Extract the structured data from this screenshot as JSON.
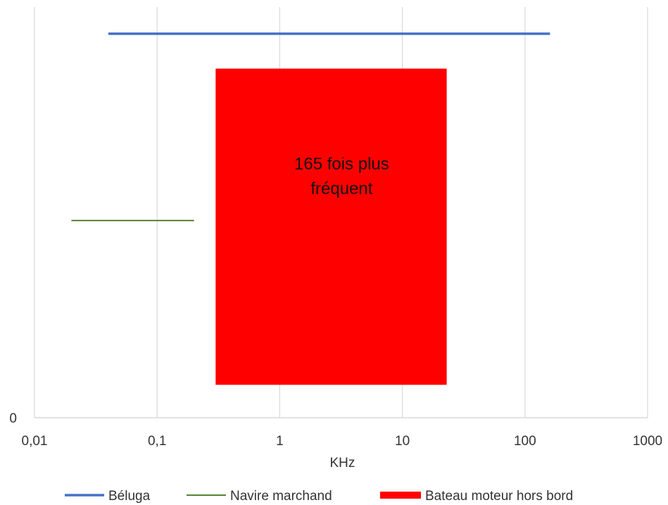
{
  "chart_data": {
    "type": "line",
    "x_scale": "log",
    "xlabel": "KHz",
    "xlim": [
      0.01,
      1000
    ],
    "x_ticks": [
      {
        "value": 0.01,
        "label": "0,01"
      },
      {
        "value": 0.1,
        "label": "0,1"
      },
      {
        "value": 1,
        "label": "1"
      },
      {
        "value": 10,
        "label": "10"
      },
      {
        "value": 100,
        "label": "100"
      },
      {
        "value": 1000,
        "label": "1000"
      }
    ],
    "y_ticks": [
      {
        "value": 0,
        "label": "0"
      }
    ],
    "ylim": [
      0,
      10
    ],
    "grid": "vertical",
    "legend_position": "bottom",
    "series": [
      {
        "name": "Béluga",
        "kind": "line",
        "x": [
          0.04,
          160
        ],
        "y": [
          9.35,
          9.35
        ],
        "color": "#4472C4"
      },
      {
        "name": "Navire marchand",
        "kind": "line",
        "x": [
          0.02,
          0.2
        ],
        "y": [
          4.8,
          4.8
        ],
        "color": "#548235"
      },
      {
        "name": "Bateau moteur hors bord",
        "kind": "range",
        "x": [
          0.3,
          23
        ],
        "y": [
          0.8,
          8.5
        ],
        "color": "#FF0000"
      }
    ],
    "annotation": {
      "lines": [
        "165 fois plus",
        "fréquent"
      ],
      "x": 3.2,
      "y": [
        6.05,
        5.45
      ]
    }
  }
}
